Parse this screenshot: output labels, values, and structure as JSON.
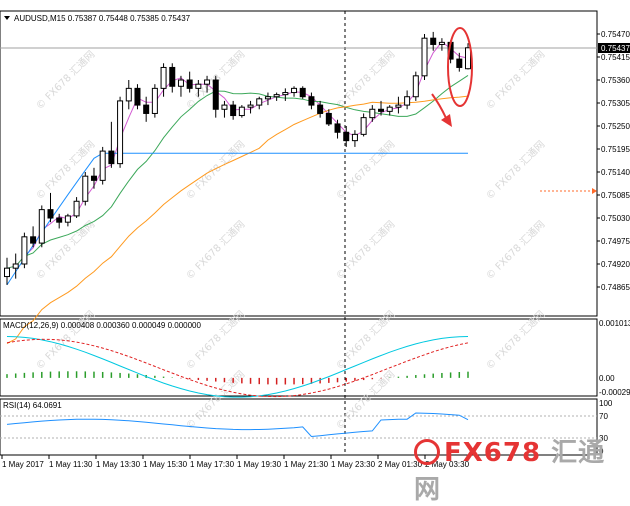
{
  "header": {
    "symbol_line": "AUDUSD,M15  0.75387 0.75448 0.75385 0.75437"
  },
  "price_axis": {
    "ticks": [
      "0.75470",
      "0.75415",
      "0.75360",
      "0.75305",
      "0.75250",
      "0.75195",
      "0.75140",
      "0.75085",
      "0.75030",
      "0.74975",
      "0.74920",
      "0.74865"
    ],
    "current": "0.75437"
  },
  "macd": {
    "label": "MACD(12,26,9) 0.000408 0.000360 0.000049 0.000000",
    "ticks": [
      "0.001013",
      "0.00",
      "-0.000292"
    ]
  },
  "rsi": {
    "label": "RSI(14) 64.0691",
    "ticks": [
      "100",
      "70",
      "30",
      "0"
    ]
  },
  "time_axis": {
    "labels": [
      "1 May 2017",
      "1 May 11:30",
      "1 May 13:30",
      "1 May 15:30",
      "1 May 17:30",
      "1 May 19:30",
      "1 May 21:30",
      "1 May 23:30",
      "2 May 01:30",
      "2 May 03:30"
    ]
  },
  "watermark": "FX678 汇通网",
  "brand": {
    "fx": "FX678",
    "cn": "汇通网"
  },
  "colors": {
    "ma_fast": "#d25bd2",
    "ma_mid": "#3ca85a",
    "ma_slow": "#ff9a1f",
    "ma_long": "#1e90ff",
    "macd_line": "#00c8e0",
    "macd_signal": "#e02020",
    "hist_up": "#2a9d2a",
    "hist_down": "#d42020",
    "rsi_line": "#1e90ff",
    "annotation": "#e53434"
  },
  "chart_data": {
    "type": "candlestick",
    "symbol": "AUDUSD",
    "timeframe": "M15",
    "ohlc": [
      [
        0.7489,
        0.74935,
        0.7487,
        0.7491
      ],
      [
        0.7491,
        0.74945,
        0.74885,
        0.7492
      ],
      [
        0.7492,
        0.74995,
        0.7491,
        0.74985
      ],
      [
        0.74985,
        0.7501,
        0.7496,
        0.7497
      ],
      [
        0.7497,
        0.7506,
        0.7496,
        0.7505
      ],
      [
        0.7505,
        0.7509,
        0.7502,
        0.7503
      ],
      [
        0.7503,
        0.7504,
        0.75005,
        0.7502
      ],
      [
        0.7502,
        0.7504,
        0.7501,
        0.75035
      ],
      [
        0.75035,
        0.7508,
        0.7503,
        0.7507
      ],
      [
        0.7507,
        0.7514,
        0.7506,
        0.7513
      ],
      [
        0.7513,
        0.7515,
        0.751,
        0.7512
      ],
      [
        0.7512,
        0.752,
        0.7511,
        0.7519
      ],
      [
        0.7519,
        0.7526,
        0.7515,
        0.7516
      ],
      [
        0.7516,
        0.7532,
        0.7515,
        0.7531
      ],
      [
        0.7531,
        0.7536,
        0.7529,
        0.7534
      ],
      [
        0.7534,
        0.7535,
        0.7529,
        0.753
      ],
      [
        0.753,
        0.7532,
        0.7526,
        0.7528
      ],
      [
        0.7528,
        0.7535,
        0.7527,
        0.7534
      ],
      [
        0.7534,
        0.754,
        0.7532,
        0.7539
      ],
      [
        0.7539,
        0.754,
        0.7533,
        0.75345
      ],
      [
        0.75345,
        0.7537,
        0.7532,
        0.7536
      ],
      [
        0.7536,
        0.7538,
        0.7533,
        0.7534
      ],
      [
        0.7534,
        0.7536,
        0.7532,
        0.7535
      ],
      [
        0.7535,
        0.7537,
        0.7533,
        0.7536
      ],
      [
        0.7536,
        0.7537,
        0.7527,
        0.7529
      ],
      [
        0.7529,
        0.7531,
        0.7527,
        0.753
      ],
      [
        0.753,
        0.7531,
        0.75265,
        0.75275
      ],
      [
        0.75275,
        0.753,
        0.7527,
        0.75295
      ],
      [
        0.75295,
        0.7531,
        0.7528,
        0.753
      ],
      [
        0.753,
        0.7532,
        0.7529,
        0.75315
      ],
      [
        0.75315,
        0.7533,
        0.753,
        0.7532
      ],
      [
        0.7532,
        0.7533,
        0.7531,
        0.75325
      ],
      [
        0.75325,
        0.7534,
        0.7531,
        0.7533
      ],
      [
        0.7533,
        0.75345,
        0.7532,
        0.7534
      ],
      [
        0.7534,
        0.75345,
        0.75315,
        0.7532
      ],
      [
        0.7532,
        0.7533,
        0.7529,
        0.753
      ],
      [
        0.753,
        0.7531,
        0.7527,
        0.7528
      ],
      [
        0.7528,
        0.7529,
        0.7525,
        0.75255
      ],
      [
        0.75255,
        0.75265,
        0.7522,
        0.75235
      ],
      [
        0.75235,
        0.7525,
        0.752,
        0.75215
      ],
      [
        0.75215,
        0.7524,
        0.752,
        0.7523
      ],
      [
        0.7523,
        0.7528,
        0.75225,
        0.7527
      ],
      [
        0.7527,
        0.753,
        0.7526,
        0.7529
      ],
      [
        0.7529,
        0.7531,
        0.75275,
        0.75285
      ],
      [
        0.75285,
        0.753,
        0.75275,
        0.75295
      ],
      [
        0.75295,
        0.7532,
        0.7528,
        0.753
      ],
      [
        0.753,
        0.75335,
        0.7529,
        0.7532
      ],
      [
        0.7532,
        0.7538,
        0.7531,
        0.7537
      ],
      [
        0.7537,
        0.7547,
        0.7536,
        0.7546
      ],
      [
        0.7546,
        0.75475,
        0.7543,
        0.75445
      ],
      [
        0.75445,
        0.7546,
        0.7543,
        0.7545
      ],
      [
        0.7545,
        0.75455,
        0.754,
        0.7541
      ],
      [
        0.7541,
        0.75425,
        0.7538,
        0.7539
      ],
      [
        0.75387,
        0.75448,
        0.75385,
        0.75437
      ]
    ],
    "x_labels": [
      "1 May 2017",
      "1 May 11:30",
      "1 May 13:30",
      "1 May 15:30",
      "1 May 17:30",
      "1 May 19:30",
      "1 May 21:30",
      "1 May 23:30",
      "2 May 01:30",
      "2 May 03:30"
    ],
    "y_range": [
      0.74865,
      0.7547
    ],
    "moving_averages": [
      "fast",
      "mid",
      "slow",
      "long"
    ],
    "macd": {
      "macd": 0.000408,
      "signal": 0.00036,
      "hist": 4.9e-05,
      "range": [
        -0.000292,
        0.001013
      ]
    },
    "rsi": {
      "period": 14,
      "value": 64.0691,
      "levels": [
        70,
        30
      ]
    }
  }
}
